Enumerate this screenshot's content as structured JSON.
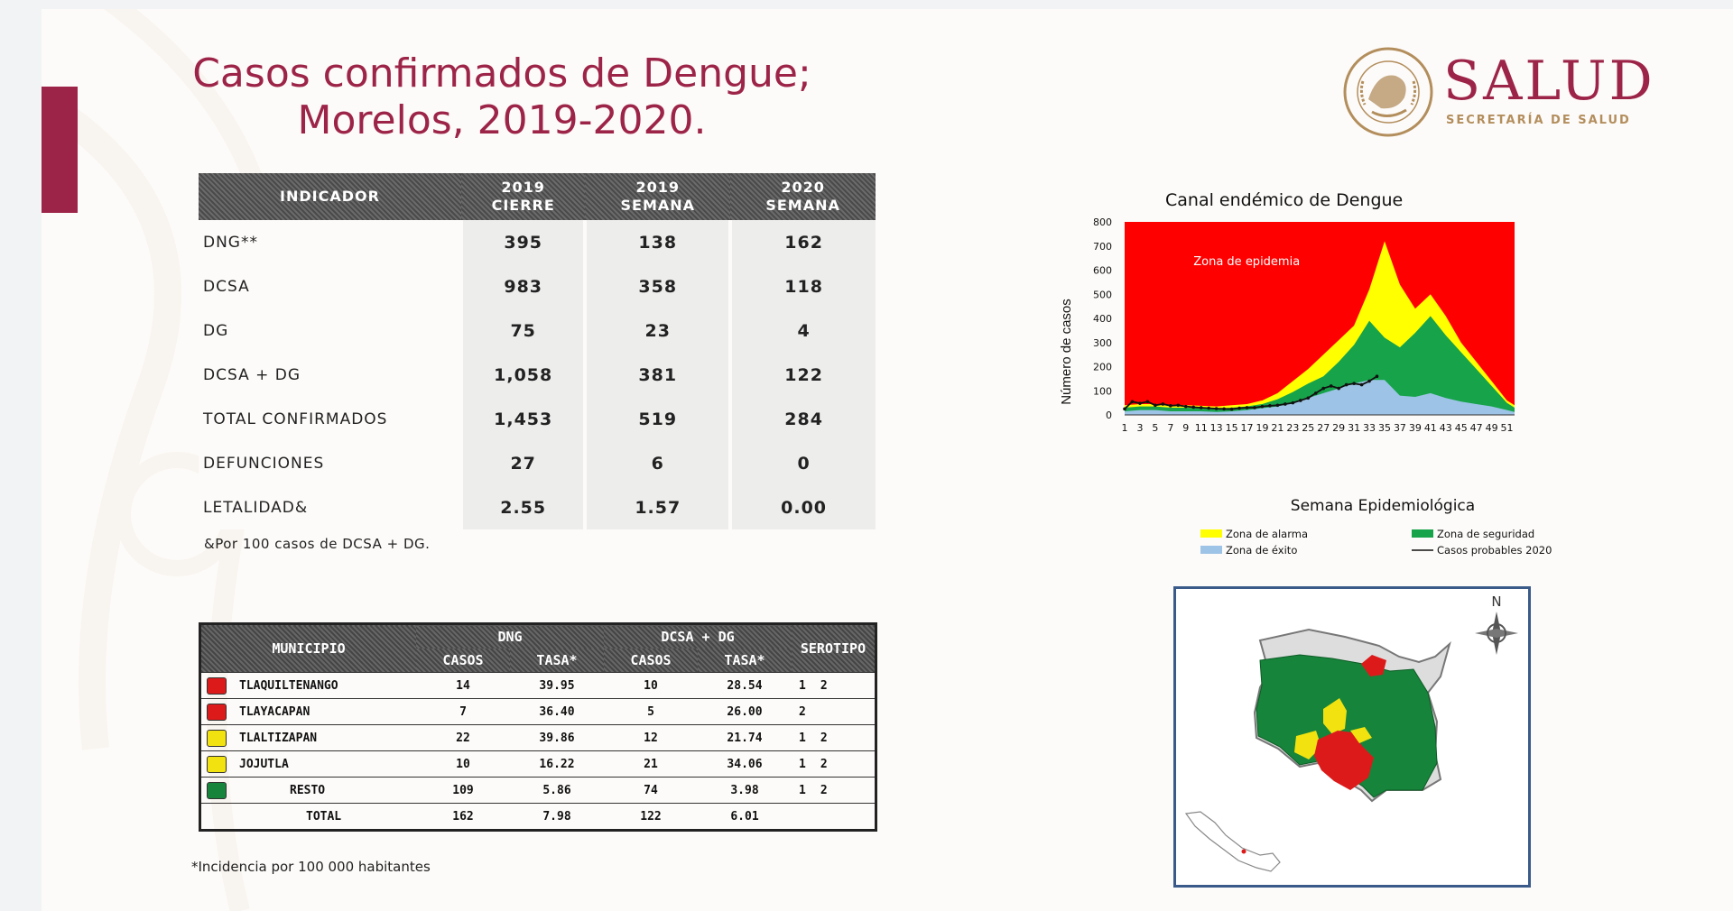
{
  "title": {
    "line1": "Casos confirmados de Dengue;",
    "line2": "Morelos, 2019-2020."
  },
  "logo": {
    "name": "SALUD",
    "subtitle": "SECRETARÍA DE SALUD",
    "seal_text": "ESTADOS UNIDOS MEXICANOS"
  },
  "colors": {
    "brand": "#9d2449",
    "gold": "#b38e5d"
  },
  "indicators": {
    "headers": [
      {
        "l1": "INDICADOR",
        "l2": ""
      },
      {
        "l1": "2019",
        "l2": "CIERRE"
      },
      {
        "l1": "2019",
        "l2": "SEMANA"
      },
      {
        "l1": "2020",
        "l2": "SEMANA"
      }
    ],
    "rows": [
      {
        "label": "DNG**",
        "v": [
          "395",
          "138",
          "162"
        ]
      },
      {
        "label": "DCSA",
        "v": [
          "983",
          "358",
          "118"
        ]
      },
      {
        "label": "DG",
        "v": [
          "75",
          "23",
          "4"
        ]
      },
      {
        "label": "DCSA + DG",
        "v": [
          "1,058",
          "381",
          "122"
        ]
      },
      {
        "label": "TOTAL CONFIRMADOS",
        "v": [
          "1,453",
          "519",
          "284"
        ]
      },
      {
        "label": "DEFUNCIONES",
        "v": [
          "27",
          "6",
          "0"
        ]
      },
      {
        "label": "LETALIDAD&",
        "v": [
          "2.55",
          "1.57",
          "0.00"
        ]
      }
    ],
    "note": "&Por 100 casos de DCSA + DG."
  },
  "municipios": {
    "headers": {
      "municipio": "MUNICIPIO",
      "dng": "DNG",
      "dcsa": "DCSA + DG",
      "casos": "CASOS",
      "tasa": "TASA*",
      "serotipo": "SEROTIPO"
    },
    "rows": [
      {
        "name": "TLAQUILTENANGO",
        "color": "#dd1a1a",
        "dng_casos": "14",
        "dng_tasa": "39.95",
        "dcsa_casos": "10",
        "dcsa_tasa": "28.54",
        "s1": "1",
        "s2": "2"
      },
      {
        "name": "TLAYACAPAN",
        "color": "#dd1a1a",
        "dng_casos": "7",
        "dng_tasa": "36.40",
        "dcsa_casos": "5",
        "dcsa_tasa": "26.00",
        "s1": "2",
        "s2": ""
      },
      {
        "name": "TLALTIZAPAN",
        "color": "#f2e20f",
        "dng_casos": "22",
        "dng_tasa": "39.86",
        "dcsa_casos": "12",
        "dcsa_tasa": "21.74",
        "s1": "1",
        "s2": "2"
      },
      {
        "name": "JOJUTLA",
        "color": "#f2e20f",
        "dng_casos": "10",
        "dng_tasa": "16.22",
        "dcsa_casos": "21",
        "dcsa_tasa": "34.06",
        "s1": "1",
        "s2": "2"
      },
      {
        "name": "RESTO",
        "color": "#16843a",
        "dng_casos": "109",
        "dng_tasa": "5.86",
        "dcsa_casos": "74",
        "dcsa_tasa": "3.98",
        "s1": "1",
        "s2": "2"
      },
      {
        "name": "TOTAL",
        "color": "",
        "dng_casos": "162",
        "dng_tasa": "7.98",
        "dcsa_casos": "122",
        "dcsa_tasa": "6.01",
        "s1": "",
        "s2": ""
      }
    ],
    "note": "*Incidencia por 100 000 habitantes"
  },
  "chart_data": {
    "type": "area",
    "title": "Canal endémico de Dengue",
    "xlabel": "Semana Epidemiológica",
    "ylabel": "Número de casos",
    "ylim": [
      0,
      800
    ],
    "yticks": [
      0,
      100,
      200,
      300,
      400,
      500,
      600,
      700,
      800
    ],
    "xlim": [
      1,
      52
    ],
    "xticks": [
      1,
      3,
      5,
      7,
      9,
      11,
      13,
      15,
      17,
      19,
      21,
      23,
      25,
      27,
      29,
      31,
      33,
      35,
      37,
      39,
      41,
      43,
      45,
      47,
      49,
      51
    ],
    "annotation": "Zona de epidemia",
    "background_color": "#ff0000",
    "legend_placement": "bottom",
    "series": [
      {
        "name": "Zona de alarma",
        "color": "#ffff00",
        "x": [
          1,
          3,
          5,
          7,
          9,
          11,
          13,
          15,
          17,
          19,
          21,
          23,
          25,
          27,
          29,
          31,
          33,
          34,
          35,
          37,
          39,
          41,
          43,
          45,
          47,
          49,
          51,
          52
        ],
        "values": [
          40,
          45,
          45,
          40,
          40,
          38,
          35,
          40,
          45,
          60,
          90,
          140,
          190,
          250,
          310,
          370,
          520,
          620,
          720,
          540,
          440,
          500,
          410,
          300,
          220,
          140,
          60,
          40
        ]
      },
      {
        "name": "Zona de seguridad",
        "color": "#16a34a",
        "x": [
          1,
          3,
          5,
          7,
          9,
          11,
          13,
          15,
          17,
          19,
          21,
          23,
          25,
          27,
          29,
          31,
          33,
          35,
          37,
          39,
          41,
          43,
          45,
          47,
          49,
          51,
          52
        ],
        "values": [
          30,
          35,
          35,
          30,
          30,
          28,
          26,
          30,
          35,
          45,
          65,
          95,
          130,
          160,
          220,
          290,
          390,
          320,
          280,
          340,
          410,
          330,
          260,
          190,
          120,
          50,
          30
        ]
      },
      {
        "name": "Zona de éxito",
        "color": "#9dc3e6",
        "x": [
          1,
          3,
          5,
          7,
          9,
          11,
          13,
          15,
          17,
          19,
          21,
          23,
          25,
          27,
          29,
          31,
          33,
          35,
          37,
          39,
          41,
          43,
          45,
          47,
          49,
          51,
          52
        ],
        "values": [
          15,
          20,
          20,
          15,
          15,
          15,
          12,
          15,
          20,
          28,
          35,
          50,
          70,
          90,
          110,
          130,
          145,
          145,
          80,
          75,
          90,
          70,
          55,
          45,
          35,
          20,
          12
        ]
      },
      {
        "name": "Casos probables 2020",
        "color": "#111111",
        "x": [
          1,
          2,
          3,
          4,
          5,
          6,
          7,
          8,
          9,
          10,
          11,
          12,
          13,
          14,
          15,
          16,
          17,
          18,
          19,
          20,
          21,
          22,
          23,
          24,
          25,
          26,
          27,
          28,
          29,
          30,
          31,
          32,
          33,
          34
        ],
        "values": [
          25,
          55,
          48,
          55,
          40,
          45,
          38,
          40,
          35,
          32,
          30,
          28,
          26,
          25,
          24,
          28,
          30,
          30,
          35,
          38,
          40,
          45,
          50,
          60,
          70,
          90,
          110,
          120,
          110,
          125,
          130,
          125,
          140,
          160
        ]
      }
    ]
  },
  "map": {
    "north": "N"
  }
}
